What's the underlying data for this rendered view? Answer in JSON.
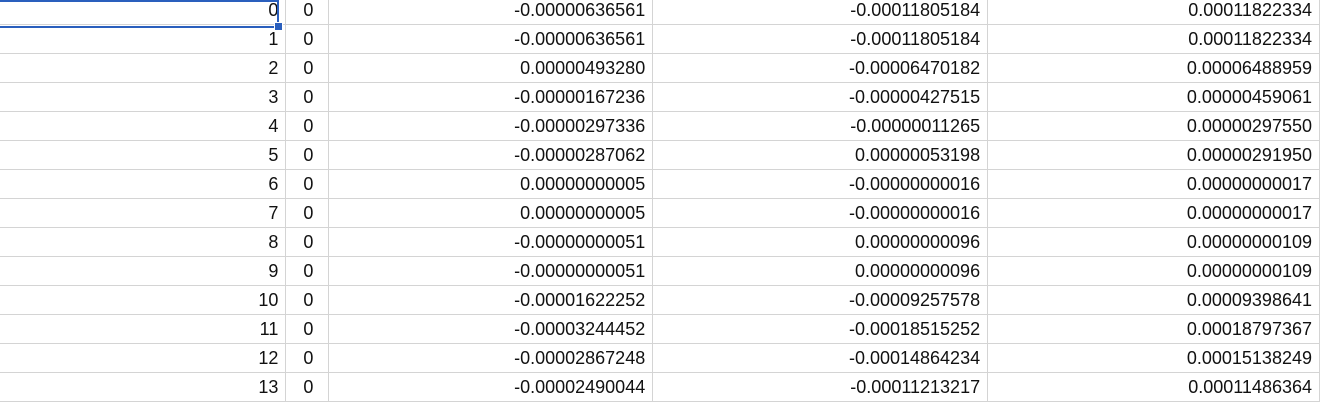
{
  "rows": [
    {
      "index": "0",
      "flag": "0",
      "col_a": "-0.00000636561",
      "col_b": "-0.00011805184",
      "col_c": "0.00011822334"
    },
    {
      "index": "1",
      "flag": "0",
      "col_a": "-0.00000636561",
      "col_b": "-0.00011805184",
      "col_c": "0.00011822334"
    },
    {
      "index": "2",
      "flag": "0",
      "col_a": "0.00000493280",
      "col_b": "-0.00006470182",
      "col_c": "0.00006488959"
    },
    {
      "index": "3",
      "flag": "0",
      "col_a": "-0.00000167236",
      "col_b": "-0.00000427515",
      "col_c": "0.00000459061"
    },
    {
      "index": "4",
      "flag": "0",
      "col_a": "-0.00000297336",
      "col_b": "-0.00000011265",
      "col_c": "0.00000297550"
    },
    {
      "index": "5",
      "flag": "0",
      "col_a": "-0.00000287062",
      "col_b": "0.00000053198",
      "col_c": "0.00000291950"
    },
    {
      "index": "6",
      "flag": "0",
      "col_a": "0.00000000005",
      "col_b": "-0.00000000016",
      "col_c": "0.00000000017"
    },
    {
      "index": "7",
      "flag": "0",
      "col_a": "0.00000000005",
      "col_b": "-0.00000000016",
      "col_c": "0.00000000017"
    },
    {
      "index": "8",
      "flag": "0",
      "col_a": "-0.00000000051",
      "col_b": "0.00000000096",
      "col_c": "0.00000000109"
    },
    {
      "index": "9",
      "flag": "0",
      "col_a": "-0.00000000051",
      "col_b": "0.00000000096",
      "col_c": "0.00000000109"
    },
    {
      "index": "10",
      "flag": "0",
      "col_a": "-0.00001622252",
      "col_b": "-0.00009257578",
      "col_c": "0.00009398641"
    },
    {
      "index": "11",
      "flag": "0",
      "col_a": "-0.00003244452",
      "col_b": "-0.00018515252",
      "col_c": "0.00018797367"
    },
    {
      "index": "12",
      "flag": "0",
      "col_a": "-0.00002867248",
      "col_b": "-0.00014864234",
      "col_c": "0.00015138249"
    },
    {
      "index": "13",
      "flag": "0",
      "col_a": "-0.00002490044",
      "col_b": "-0.00011213217",
      "col_c": "0.00011486364"
    }
  ],
  "colors": {
    "selection": "#2a5fbd",
    "gridline": "#d4d4d4"
  }
}
